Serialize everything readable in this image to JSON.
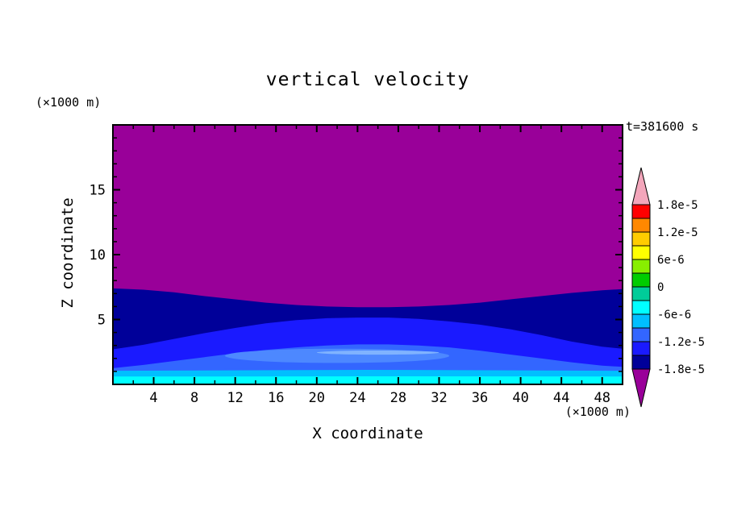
{
  "title": "vertical velocity",
  "timestamp": "t=381600 s",
  "axes": {
    "x_label": "X coordinate",
    "y_label": "Z coordinate",
    "x_unit": "(×1000 m)",
    "y_unit": "(×1000 m)",
    "x_ticks": [
      4,
      8,
      12,
      16,
      20,
      24,
      28,
      32,
      36,
      40,
      44,
      48
    ],
    "y_ticks": [
      5,
      10,
      15
    ]
  },
  "colorbar": {
    "labels": [
      "1.8e-5",
      "1.2e-5",
      "6e-6",
      "0",
      "-6e-6",
      "-1.2e-5",
      "-1.8e-5"
    ],
    "above_color": "#f3a6bb",
    "below_color": "#990099",
    "cells": [
      "#ff0000",
      "#ff8800",
      "#ffcc00",
      "#ffff00",
      "#88ee00",
      "#00cc00",
      "#00cc99",
      "#00ffff",
      "#00bfff",
      "#3366ff",
      "#1a1aff",
      "#000099"
    ]
  },
  "chart_data": {
    "type": "heatmap",
    "variable": "vertical velocity",
    "time_label": "t=381600 s",
    "x_range": [
      0,
      50
    ],
    "z_range": [
      0,
      20
    ],
    "x_axis": "X coordinate (×1000 m)",
    "z_axis": "Z coordinate (×1000 m)",
    "contour_levels": [
      -1.8e-05,
      -1.2e-05,
      -6e-06,
      0,
      6e-06,
      1.2e-05,
      1.8e-05
    ],
    "legend_position": "right",
    "background": {
      "color": "#990099",
      "meaning": "w below -1.8e-5 over entire upper domain (z above about 6-7.4 km)"
    },
    "bands": [
      {
        "contour": "-1.8e-5",
        "color": "#000099",
        "boundary": [
          [
            0,
            7.4
          ],
          [
            3,
            7.3
          ],
          [
            6,
            7.1
          ],
          [
            9,
            6.8
          ],
          [
            12,
            6.55
          ],
          [
            15,
            6.3
          ],
          [
            18,
            6.12
          ],
          [
            21,
            6.0
          ],
          [
            24,
            5.95
          ],
          [
            27,
            5.95
          ],
          [
            30,
            6.0
          ],
          [
            33,
            6.12
          ],
          [
            36,
            6.3
          ],
          [
            39,
            6.55
          ],
          [
            42,
            6.8
          ],
          [
            45,
            7.05
          ],
          [
            48,
            7.25
          ],
          [
            50,
            7.35
          ]
        ]
      },
      {
        "contour": "-1.5e-5",
        "color": "#1a1aff",
        "boundary": [
          [
            0,
            2.7
          ],
          [
            3,
            3.05
          ],
          [
            6,
            3.5
          ],
          [
            9,
            3.95
          ],
          [
            12,
            4.35
          ],
          [
            15,
            4.7
          ],
          [
            18,
            4.95
          ],
          [
            21,
            5.1
          ],
          [
            24,
            5.15
          ],
          [
            27,
            5.15
          ],
          [
            30,
            5.05
          ],
          [
            33,
            4.85
          ],
          [
            36,
            4.6
          ],
          [
            39,
            4.25
          ],
          [
            42,
            3.8
          ],
          [
            45,
            3.3
          ],
          [
            48,
            2.9
          ],
          [
            50,
            2.75
          ]
        ]
      },
      {
        "contour": "-1.2e-5",
        "color": "#3366ff",
        "boundary": [
          [
            0,
            1.25
          ],
          [
            3,
            1.5
          ],
          [
            6,
            1.8
          ],
          [
            9,
            2.1
          ],
          [
            12,
            2.4
          ],
          [
            15,
            2.65
          ],
          [
            18,
            2.85
          ],
          [
            21,
            3.0
          ],
          [
            24,
            3.08
          ],
          [
            27,
            3.08
          ],
          [
            30,
            3.0
          ],
          [
            33,
            2.85
          ],
          [
            36,
            2.6
          ],
          [
            39,
            2.3
          ],
          [
            42,
            2.0
          ],
          [
            45,
            1.7
          ],
          [
            48,
            1.45
          ],
          [
            50,
            1.35
          ]
        ]
      },
      {
        "contour": "-9e-6",
        "color": "#00bfff",
        "boundary": [
          [
            0,
            1.05
          ],
          [
            25,
            1.12
          ],
          [
            50,
            1.05
          ]
        ]
      },
      {
        "contour": "-6e-6",
        "color": "#00ffff",
        "boundary": [
          [
            0,
            0.6
          ],
          [
            25,
            0.62
          ],
          [
            50,
            0.6
          ]
        ]
      }
    ],
    "lenses": [
      {
        "color": "#4d88ff",
        "cx": 22,
        "cy": 2.2,
        "rx": 11,
        "ry": 0.55
      },
      {
        "color": "#80b3ff",
        "cx": 26,
        "cy": 2.45,
        "rx": 6,
        "ry": 0.16
      }
    ]
  }
}
